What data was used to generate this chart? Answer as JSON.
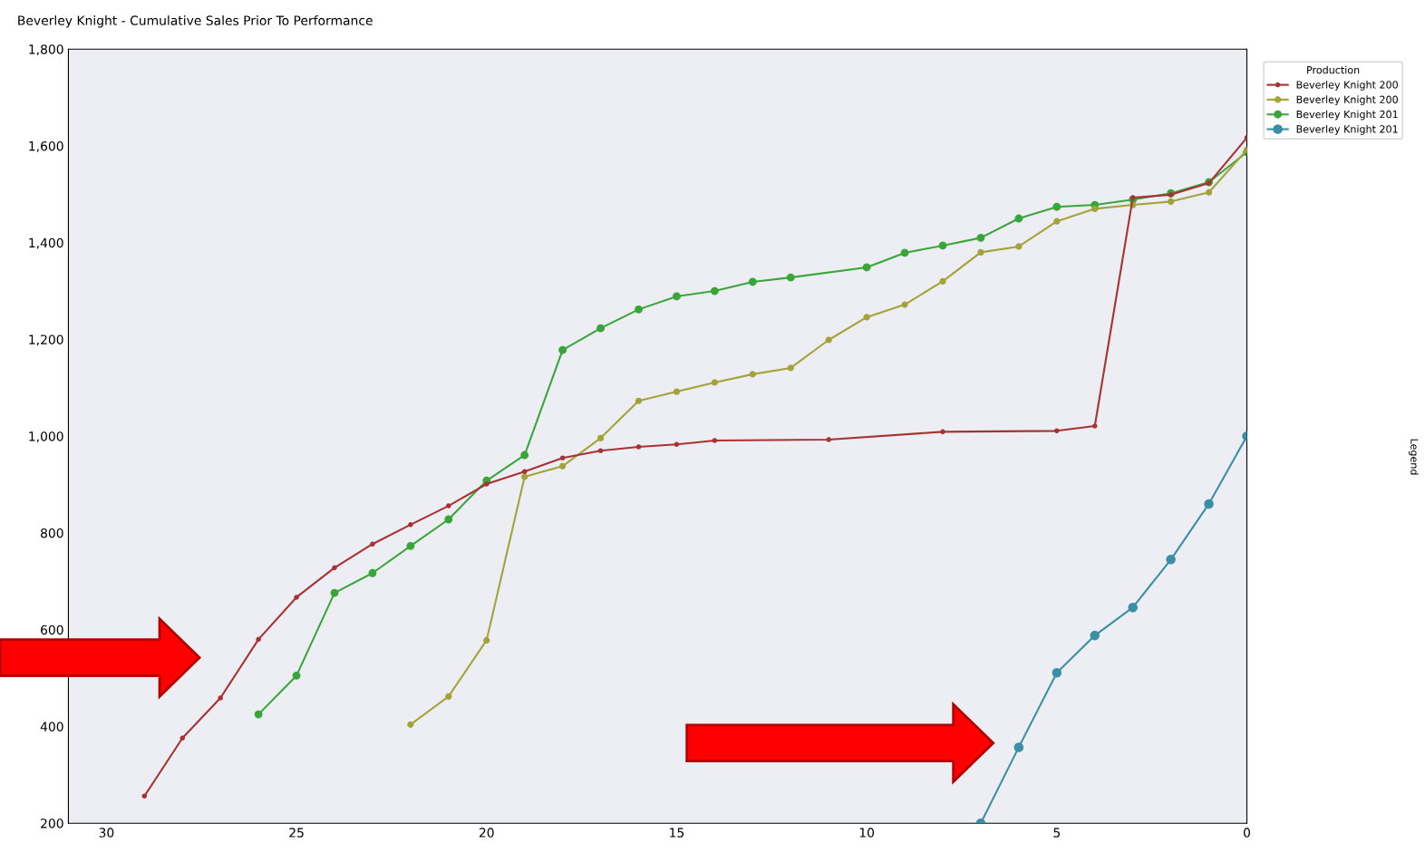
{
  "chart_data": {
    "type": "line",
    "title": "Beverley Knight - Cumulative Sales Prior To Performance",
    "legend_title": "Production",
    "annotations": [
      "Legend"
    ],
    "xlim": [
      31,
      0
    ],
    "xticks": [
      30,
      25,
      20,
      15,
      10,
      5,
      0
    ],
    "ylim": [
      200,
      1800
    ],
    "yticks": [
      {
        "value": 200,
        "label": "200"
      },
      {
        "value": 400,
        "label": "400"
      },
      {
        "value": 600,
        "label": "600"
      },
      {
        "value": 800,
        "label": "800"
      },
      {
        "value": 1000,
        "label": "1,000"
      },
      {
        "value": 1200,
        "label": "1,200"
      },
      {
        "value": 1400,
        "label": "1,400"
      },
      {
        "value": 1600,
        "label": "1,600"
      },
      {
        "value": 1800,
        "label": "1,800"
      }
    ],
    "grid": false,
    "legend": "right",
    "marker": "circle",
    "line_style": "solid",
    "series": [
      {
        "name": "Beverley Knight 200",
        "color": "#a83232",
        "x": [
          29,
          28,
          27,
          26,
          25,
          24,
          23,
          22,
          21,
          20,
          19,
          18,
          17,
          16,
          15,
          14,
          11,
          8,
          5,
          4,
          3,
          2,
          1,
          0
        ],
        "values": [
          256,
          376,
          459,
          580,
          667,
          728,
          777,
          817,
          856,
          901,
          927,
          955,
          970,
          978,
          983,
          991,
          993,
          1009,
          1011,
          1021,
          1493,
          1499,
          1523,
          1617
        ]
      },
      {
        "name": "Beverley Knight 200",
        "color": "#a3a33a",
        "x": [
          22,
          21,
          20,
          19,
          18,
          17,
          16,
          15,
          14,
          13,
          12,
          11,
          10,
          9,
          8,
          7,
          6,
          5,
          4,
          3,
          2,
          1,
          0
        ],
        "values": [
          404,
          462,
          578,
          916,
          938,
          996,
          1073,
          1092,
          1111,
          1128,
          1141,
          1199,
          1246,
          1272,
          1320,
          1380,
          1392,
          1444,
          1470,
          1478,
          1485,
          1504,
          1592
        ]
      },
      {
        "name": "Beverley Knight 201",
        "color": "#3aa63a",
        "x": [
          26,
          25,
          24,
          23,
          22,
          21,
          20,
          19,
          18,
          17,
          16,
          15,
          14,
          13,
          12,
          10,
          9,
          8,
          7,
          6,
          5,
          4,
          3,
          2,
          1,
          0
        ],
        "values": [
          425,
          505,
          676,
          717,
          773,
          828,
          908,
          961,
          1178,
          1223,
          1262,
          1289,
          1300,
          1319,
          1328,
          1349,
          1379,
          1394,
          1410,
          1450,
          1474,
          1478,
          1489,
          1502,
          1525,
          1587
        ]
      },
      {
        "name": "Beverley Knight 201",
        "color": "#3a8fa6",
        "x": [
          7,
          6,
          5,
          4,
          3,
          2,
          1,
          0
        ],
        "values": [
          200,
          357,
          511,
          588,
          646,
          745,
          860,
          1000
        ]
      }
    ]
  }
}
